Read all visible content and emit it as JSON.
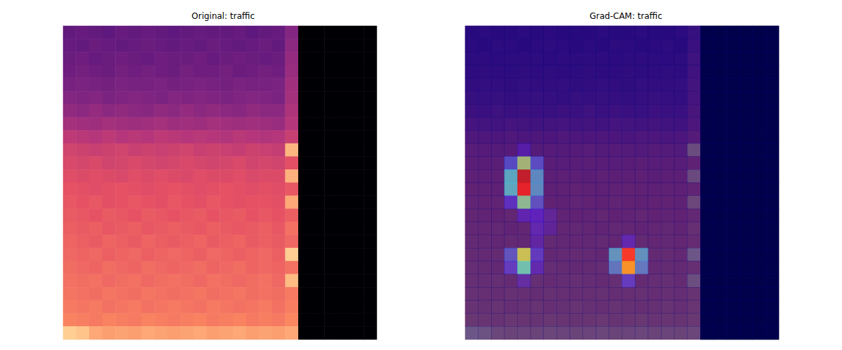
{
  "chart_data": {
    "type": "heatmap",
    "tick_labels": false,
    "spectrogram": {
      "title": "Original: traffic",
      "color_range": [
        0,
        1
      ],
      "cells": [
        [
          0.3,
          0.31,
          0.3,
          0.29,
          0.31,
          0.3,
          0.31,
          0.3,
          0.29,
          0.3,
          0.31,
          0.3,
          0.3,
          0.31,
          0.29,
          0.3,
          0.31,
          0.38,
          0,
          0,
          0,
          0,
          0,
          0
        ],
        [
          0.31,
          0.3,
          0.32,
          0.31,
          0.3,
          0.31,
          0.32,
          0.31,
          0.3,
          0.31,
          0.3,
          0.32,
          0.31,
          0.3,
          0.31,
          0.32,
          0.3,
          0.4,
          0,
          0,
          0,
          0,
          0,
          0
        ],
        [
          0.32,
          0.33,
          0.31,
          0.32,
          0.33,
          0.32,
          0.31,
          0.33,
          0.32,
          0.32,
          0.33,
          0.31,
          0.32,
          0.33,
          0.32,
          0.31,
          0.32,
          0.42,
          0,
          0,
          0,
          0,
          0,
          0
        ],
        [
          0.33,
          0.34,
          0.33,
          0.32,
          0.34,
          0.33,
          0.34,
          0.33,
          0.32,
          0.34,
          0.33,
          0.33,
          0.34,
          0.32,
          0.33,
          0.34,
          0.33,
          0.43,
          0,
          0,
          0,
          0,
          0,
          0
        ],
        [
          0.35,
          0.36,
          0.35,
          0.34,
          0.36,
          0.35,
          0.35,
          0.36,
          0.34,
          0.35,
          0.36,
          0.35,
          0.34,
          0.36,
          0.35,
          0.35,
          0.36,
          0.45,
          0,
          0,
          0,
          0,
          0,
          0
        ],
        [
          0.38,
          0.37,
          0.38,
          0.36,
          0.37,
          0.38,
          0.37,
          0.36,
          0.38,
          0.37,
          0.38,
          0.37,
          0.36,
          0.37,
          0.38,
          0.37,
          0.36,
          0.46,
          0,
          0,
          0,
          0,
          0,
          0
        ],
        [
          0.41,
          0.4,
          0.42,
          0.4,
          0.41,
          0.4,
          0.39,
          0.41,
          0.4,
          0.42,
          0.4,
          0.41,
          0.4,
          0.39,
          0.41,
          0.4,
          0.4,
          0.48,
          0,
          0,
          0,
          0,
          0,
          0
        ],
        [
          0.46,
          0.45,
          0.44,
          0.46,
          0.45,
          0.44,
          0.45,
          0.46,
          0.44,
          0.45,
          0.44,
          0.46,
          0.45,
          0.44,
          0.45,
          0.44,
          0.43,
          0.5,
          0,
          0,
          0,
          0,
          0,
          0
        ],
        [
          0.52,
          0.51,
          0.5,
          0.52,
          0.5,
          0.51,
          0.5,
          0.52,
          0.51,
          0.5,
          0.51,
          0.5,
          0.49,
          0.51,
          0.5,
          0.49,
          0.5,
          0.55,
          0,
          0,
          0,
          0,
          0,
          0
        ],
        [
          0.57,
          0.56,
          0.55,
          0.56,
          0.57,
          0.55,
          0.56,
          0.55,
          0.56,
          0.57,
          0.55,
          0.56,
          0.55,
          0.54,
          0.56,
          0.55,
          0.54,
          0.85,
          0,
          0,
          0,
          0,
          0,
          0
        ],
        [
          0.59,
          0.58,
          0.59,
          0.57,
          0.58,
          0.59,
          0.58,
          0.57,
          0.58,
          0.59,
          0.58,
          0.57,
          0.58,
          0.59,
          0.57,
          0.58,
          0.57,
          0.62,
          0,
          0,
          0,
          0,
          0,
          0
        ],
        [
          0.61,
          0.6,
          0.61,
          0.6,
          0.59,
          0.61,
          0.6,
          0.61,
          0.6,
          0.59,
          0.61,
          0.6,
          0.6,
          0.61,
          0.59,
          0.6,
          0.6,
          0.84,
          0,
          0,
          0,
          0,
          0,
          0
        ],
        [
          0.63,
          0.62,
          0.61,
          0.62,
          0.63,
          0.62,
          0.61,
          0.62,
          0.63,
          0.62,
          0.61,
          0.62,
          0.63,
          0.62,
          0.61,
          0.62,
          0.61,
          0.64,
          0,
          0,
          0,
          0,
          0,
          0
        ],
        [
          0.64,
          0.63,
          0.64,
          0.62,
          0.63,
          0.64,
          0.63,
          0.62,
          0.64,
          0.63,
          0.62,
          0.64,
          0.63,
          0.62,
          0.63,
          0.63,
          0.62,
          0.82,
          0,
          0,
          0,
          0,
          0,
          0
        ],
        [
          0.65,
          0.64,
          0.63,
          0.65,
          0.64,
          0.63,
          0.65,
          0.64,
          0.63,
          0.64,
          0.65,
          0.63,
          0.64,
          0.65,
          0.63,
          0.64,
          0.63,
          0.66,
          0,
          0,
          0,
          0,
          0,
          0
        ],
        [
          0.66,
          0.65,
          0.66,
          0.64,
          0.65,
          0.66,
          0.64,
          0.65,
          0.66,
          0.65,
          0.64,
          0.66,
          0.65,
          0.64,
          0.65,
          0.66,
          0.64,
          0.7,
          0,
          0,
          0,
          0,
          0,
          0
        ],
        [
          0.67,
          0.66,
          0.65,
          0.67,
          0.66,
          0.65,
          0.67,
          0.66,
          0.65,
          0.66,
          0.67,
          0.65,
          0.66,
          0.67,
          0.65,
          0.66,
          0.65,
          0.68,
          0,
          0,
          0,
          0,
          0,
          0
        ],
        [
          0.68,
          0.67,
          0.68,
          0.66,
          0.67,
          0.68,
          0.66,
          0.67,
          0.68,
          0.67,
          0.66,
          0.68,
          0.67,
          0.66,
          0.67,
          0.68,
          0.66,
          0.9,
          0,
          0,
          0,
          0,
          0,
          0
        ],
        [
          0.69,
          0.68,
          0.67,
          0.69,
          0.68,
          0.67,
          0.69,
          0.68,
          0.67,
          0.68,
          0.69,
          0.67,
          0.68,
          0.69,
          0.67,
          0.68,
          0.67,
          0.7,
          0,
          0,
          0,
          0,
          0,
          0
        ],
        [
          0.7,
          0.69,
          0.7,
          0.68,
          0.69,
          0.7,
          0.68,
          0.69,
          0.7,
          0.69,
          0.68,
          0.7,
          0.69,
          0.68,
          0.69,
          0.7,
          0.68,
          0.86,
          0,
          0,
          0,
          0,
          0,
          0
        ],
        [
          0.71,
          0.7,
          0.69,
          0.71,
          0.7,
          0.69,
          0.71,
          0.7,
          0.69,
          0.7,
          0.71,
          0.69,
          0.7,
          0.71,
          0.69,
          0.7,
          0.69,
          0.72,
          0,
          0,
          0,
          0,
          0,
          0
        ],
        [
          0.72,
          0.71,
          0.72,
          0.7,
          0.71,
          0.72,
          0.7,
          0.71,
          0.72,
          0.71,
          0.7,
          0.72,
          0.71,
          0.7,
          0.71,
          0.72,
          0.7,
          0.73,
          0,
          0,
          0,
          0,
          0,
          0
        ],
        [
          0.74,
          0.73,
          0.72,
          0.74,
          0.73,
          0.72,
          0.74,
          0.73,
          0.72,
          0.73,
          0.74,
          0.72,
          0.73,
          0.74,
          0.72,
          0.73,
          0.72,
          0.75,
          0,
          0,
          0,
          0,
          0,
          0
        ],
        [
          0.9,
          0.88,
          0.82,
          0.8,
          0.81,
          0.8,
          0.82,
          0.81,
          0.8,
          0.81,
          0.82,
          0.8,
          0.81,
          0.82,
          0.8,
          0.81,
          0.8,
          0.82,
          0,
          0,
          0,
          0,
          0,
          0
        ]
      ]
    },
    "gradcam": {
      "title": "Grad-CAM: traffic",
      "color_range": [
        0,
        1
      ],
      "cells": [
        [
          0,
          0,
          0,
          0,
          0,
          0,
          0,
          0,
          0,
          0,
          0,
          0,
          0,
          0,
          0,
          0,
          0,
          0,
          0,
          0,
          0,
          0,
          0,
          0
        ],
        [
          0,
          0,
          0,
          0,
          0,
          0,
          0,
          0,
          0,
          0,
          0,
          0,
          0,
          0,
          0,
          0,
          0,
          0,
          0,
          0,
          0,
          0,
          0,
          0
        ],
        [
          0,
          0,
          0,
          0,
          0,
          0,
          0,
          0,
          0,
          0,
          0,
          0,
          0,
          0,
          0,
          0,
          0,
          0,
          0,
          0,
          0,
          0,
          0,
          0
        ],
        [
          0,
          0,
          0,
          0,
          0,
          0,
          0,
          0,
          0,
          0,
          0,
          0,
          0,
          0,
          0,
          0,
          0,
          0,
          0,
          0,
          0,
          0,
          0,
          0
        ],
        [
          0,
          0,
          0,
          0,
          0,
          0,
          0,
          0,
          0,
          0,
          0,
          0,
          0,
          0,
          0,
          0,
          0,
          0,
          0,
          0,
          0,
          0,
          0,
          0
        ],
        [
          0,
          0,
          0,
          0,
          0,
          0,
          0,
          0,
          0,
          0,
          0,
          0,
          0,
          0,
          0,
          0,
          0,
          0,
          0,
          0,
          0,
          0,
          0,
          0
        ],
        [
          0,
          0,
          0,
          0,
          0,
          0,
          0,
          0,
          0,
          0,
          0,
          0,
          0,
          0,
          0,
          0,
          0,
          0,
          0,
          0,
          0,
          0,
          0,
          0
        ],
        [
          0,
          0,
          0,
          0,
          0,
          0,
          0,
          0,
          0,
          0,
          0,
          0,
          0,
          0,
          0,
          0,
          0,
          0,
          0,
          0,
          0,
          0,
          0,
          0
        ],
        [
          0,
          0,
          0,
          0,
          0,
          0,
          0,
          0,
          0,
          0,
          0,
          0,
          0,
          0,
          0,
          0,
          0,
          0,
          0,
          0,
          0,
          0,
          0,
          0
        ],
        [
          0,
          0,
          0,
          0,
          0.08,
          0,
          0,
          0,
          0,
          0,
          0,
          0,
          0,
          0,
          0,
          0,
          0,
          0,
          0,
          0,
          0,
          0,
          0,
          0
        ],
        [
          0,
          0,
          0,
          0.2,
          0.5,
          0.2,
          0,
          0,
          0,
          0,
          0,
          0,
          0,
          0,
          0,
          0,
          0,
          0,
          0,
          0,
          0,
          0,
          0,
          0
        ],
        [
          0,
          0,
          0,
          0.35,
          0.95,
          0.3,
          0,
          0,
          0,
          0,
          0,
          0,
          0,
          0,
          0,
          0,
          0,
          0,
          0,
          0,
          0,
          0,
          0,
          0
        ],
        [
          0,
          0,
          0,
          0.35,
          0.9,
          0.3,
          0,
          0,
          0,
          0,
          0,
          0,
          0,
          0,
          0,
          0,
          0,
          0,
          0,
          0,
          0,
          0,
          0,
          0
        ],
        [
          0,
          0,
          0,
          0.15,
          0.45,
          0.2,
          0,
          0,
          0,
          0,
          0,
          0,
          0,
          0,
          0,
          0,
          0,
          0,
          0,
          0,
          0,
          0,
          0,
          0
        ],
        [
          0,
          0,
          0,
          0,
          0.1,
          0.12,
          0.06,
          0,
          0,
          0,
          0,
          0,
          0,
          0,
          0,
          0,
          0,
          0,
          0,
          0,
          0,
          0,
          0,
          0
        ],
        [
          0,
          0,
          0,
          0,
          0,
          0.1,
          0.06,
          0,
          0,
          0,
          0,
          0,
          0,
          0,
          0,
          0,
          0,
          0,
          0,
          0,
          0,
          0,
          0,
          0
        ],
        [
          0,
          0,
          0,
          0,
          0,
          0.08,
          0,
          0,
          0,
          0,
          0,
          0,
          0.1,
          0,
          0,
          0,
          0,
          0,
          0,
          0,
          0,
          0,
          0,
          0
        ],
        [
          0,
          0,
          0,
          0.2,
          0.55,
          0.15,
          0,
          0,
          0,
          0,
          0,
          0.3,
          0.85,
          0.3,
          0,
          0,
          0,
          0,
          0,
          0,
          0,
          0,
          0,
          0
        ],
        [
          0,
          0,
          0,
          0.15,
          0.4,
          0.1,
          0,
          0,
          0,
          0,
          0,
          0.25,
          0.7,
          0.25,
          0,
          0,
          0,
          0,
          0,
          0,
          0,
          0,
          0,
          0
        ],
        [
          0,
          0,
          0,
          0,
          0.08,
          0,
          0,
          0,
          0,
          0,
          0,
          0,
          0.15,
          0,
          0,
          0,
          0,
          0,
          0,
          0,
          0,
          0,
          0,
          0
        ],
        [
          0,
          0,
          0,
          0,
          0,
          0,
          0,
          0,
          0,
          0,
          0,
          0,
          0,
          0,
          0,
          0,
          0,
          0,
          0,
          0,
          0,
          0,
          0,
          0
        ],
        [
          0,
          0,
          0,
          0,
          0,
          0,
          0,
          0,
          0,
          0,
          0,
          0,
          0,
          0,
          0,
          0,
          0,
          0,
          0,
          0,
          0,
          0,
          0,
          0
        ],
        [
          0,
          0,
          0,
          0,
          0,
          0,
          0,
          0,
          0,
          0,
          0,
          0,
          0,
          0,
          0,
          0,
          0,
          0,
          0,
          0,
          0,
          0,
          0,
          0
        ],
        [
          0,
          0,
          0,
          0,
          0,
          0,
          0,
          0,
          0,
          0,
          0,
          0,
          0,
          0,
          0,
          0,
          0,
          0,
          0,
          0,
          0,
          0,
          0,
          0
        ]
      ]
    }
  }
}
